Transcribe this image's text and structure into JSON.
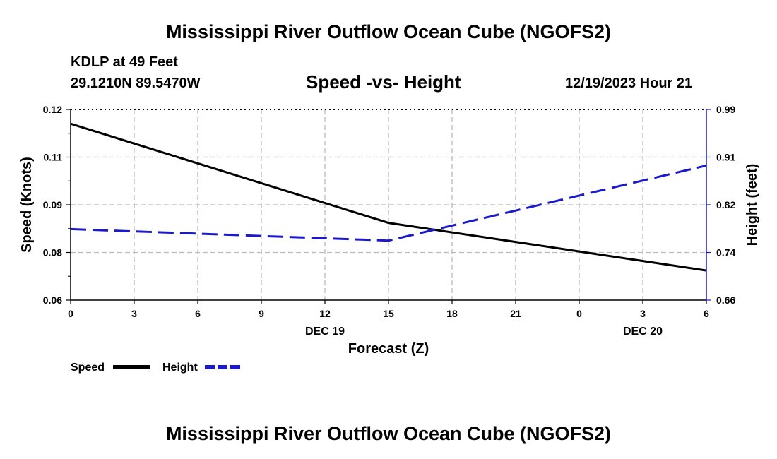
{
  "header": {
    "title": "Mississippi River Outflow Ocean Cube (NGOFS2)",
    "station": "KDLP at 49 Feet",
    "coords": "29.1210N  89.5470W",
    "subtitle": "Speed -vs- Height",
    "datetime": "12/19/2023 Hour 21"
  },
  "footer": {
    "title": "Mississippi River Outflow Ocean Cube (NGOFS2)"
  },
  "chart_data": {
    "type": "line",
    "title": "Speed -vs- Height",
    "xlabel": "Forecast (Z)",
    "ylabel": "Speed (Knots)",
    "y2label": "Height (feet)",
    "x_ticks": [
      "0",
      "3",
      "6",
      "9",
      "12",
      "15",
      "18",
      "21",
      "0",
      "3",
      "6"
    ],
    "x_day_labels": [
      {
        "at_hour": 12,
        "label": "DEC 19"
      },
      {
        "at_hour": 27,
        "label": "DEC 20"
      }
    ],
    "xlim": [
      0,
      30
    ],
    "ylim": [
      0.06,
      0.12
    ],
    "y_ticks": [
      "0.12",
      "0.11",
      "0.09",
      "0.08",
      "0.06"
    ],
    "y_tick_values": [
      0.12,
      0.105,
      0.09,
      0.075,
      0.06
    ],
    "y2lim": [
      0.66,
      0.99
    ],
    "y2_ticks": [
      "0.99",
      "0.91",
      "0.82",
      "0.74",
      "0.66"
    ],
    "y2_tick_values": [
      0.99,
      0.9075,
      0.825,
      0.7425,
      0.66
    ],
    "grid": true,
    "series": [
      {
        "name": "Speed",
        "axis": "left",
        "color": "#000000",
        "dash": "solid",
        "x": [
          0,
          15,
          24,
          30
        ],
        "values": [
          0.1155,
          0.0843,
          0.0753,
          0.0693
        ]
      },
      {
        "name": "Height",
        "axis": "right",
        "color": "#1a1acc",
        "dash": "dashed",
        "x": [
          0,
          15,
          30
        ],
        "values": [
          0.783,
          0.763,
          0.893
        ]
      }
    ],
    "legend": [
      {
        "label": "Speed",
        "color": "#000000",
        "dash": "solid"
      },
      {
        "label": "Height",
        "color": "#1a1acc",
        "dash": "dashed"
      }
    ]
  }
}
